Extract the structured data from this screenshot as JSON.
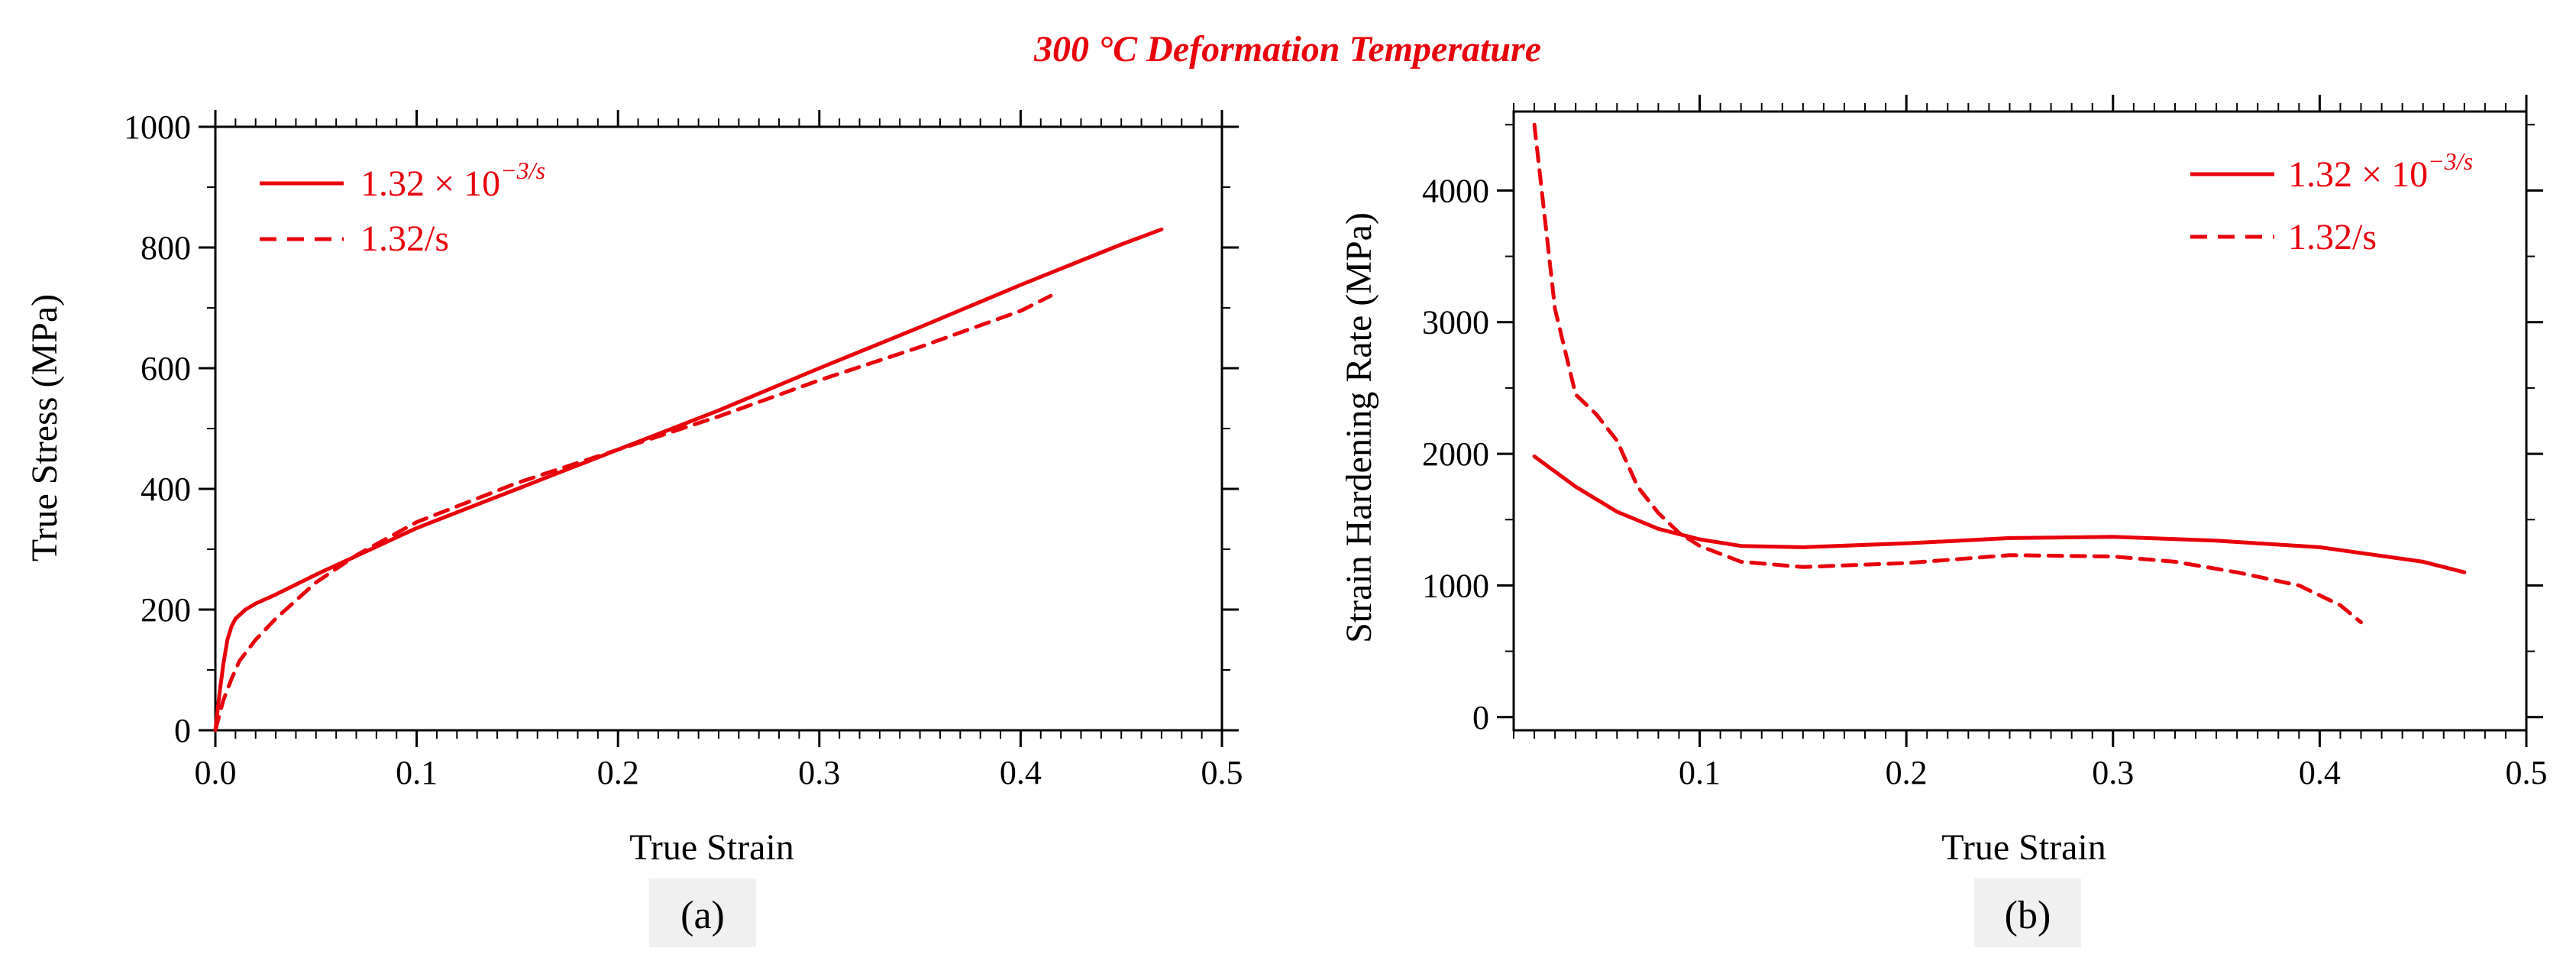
{
  "figure_title": "300 °C Deformation Temperature",
  "chart_data": [
    {
      "type": "line",
      "panel_label": "(a)",
      "xlabel": "True Strain",
      "ylabel": "True Stress (MPa)",
      "xlim": [
        0,
        0.5
      ],
      "ylim": [
        0,
        1000
      ],
      "xticks": [
        "0.0",
        "0.1",
        "0.2",
        "0.3",
        "0.4",
        "0.5"
      ],
      "yticks": [
        "0",
        "200",
        "400",
        "600",
        "800",
        "1000"
      ],
      "legend_position": "top-left",
      "series": [
        {
          "name": "1.32 × 10",
          "name_exp": "−3/s",
          "style": "solid",
          "color": "#e8000b",
          "x": [
            0,
            0.002,
            0.004,
            0.006,
            0.008,
            0.01,
            0.015,
            0.02,
            0.03,
            0.05,
            0.1,
            0.15,
            0.2,
            0.25,
            0.3,
            0.35,
            0.4,
            0.45,
            0.47
          ],
          "y": [
            0,
            60,
            110,
            150,
            172,
            185,
            200,
            210,
            225,
            258,
            335,
            400,
            465,
            530,
            600,
            668,
            738,
            805,
            830
          ]
        },
        {
          "name": "1.32/s",
          "style": "dashed",
          "color": "#e8000b",
          "x": [
            0,
            0.004,
            0.008,
            0.012,
            0.02,
            0.03,
            0.04,
            0.05,
            0.07,
            0.1,
            0.15,
            0.2,
            0.25,
            0.3,
            0.35,
            0.4,
            0.415
          ],
          "y": [
            0,
            50,
            85,
            115,
            150,
            185,
            215,
            245,
            290,
            345,
            410,
            465,
            520,
            580,
            635,
            695,
            720
          ]
        }
      ]
    },
    {
      "type": "line",
      "panel_label": "(b)",
      "xlabel": "True Strain",
      "ylabel": "Strain Hardening Rate (MPa)",
      "xlim": [
        0.01,
        0.5
      ],
      "ylim": [
        -100,
        4600
      ],
      "xticks": [
        "0.1",
        "0.2",
        "0.3",
        "0.4",
        "0.5"
      ],
      "yticks": [
        "0",
        "1000",
        "2000",
        "3000",
        "4000"
      ],
      "legend_position": "top-right",
      "series": [
        {
          "name": "1.32 × 10",
          "name_exp": "−3/s",
          "style": "solid",
          "color": "#e8000b",
          "x": [
            0.02,
            0.04,
            0.06,
            0.08,
            0.1,
            0.12,
            0.15,
            0.2,
            0.25,
            0.3,
            0.35,
            0.4,
            0.45,
            0.47
          ],
          "y": [
            1980,
            1750,
            1560,
            1430,
            1350,
            1300,
            1290,
            1320,
            1360,
            1370,
            1340,
            1290,
            1180,
            1100
          ]
        },
        {
          "name": "1.32/s",
          "style": "dashed",
          "color": "#e8000b",
          "x": [
            0.02,
            0.025,
            0.03,
            0.04,
            0.05,
            0.06,
            0.07,
            0.08,
            0.09,
            0.1,
            0.12,
            0.15,
            0.2,
            0.25,
            0.3,
            0.33,
            0.36,
            0.39,
            0.41,
            0.42
          ],
          "y": [
            4500,
            3800,
            3100,
            2450,
            2300,
            2100,
            1750,
            1550,
            1400,
            1300,
            1180,
            1140,
            1170,
            1230,
            1220,
            1180,
            1100,
            1000,
            850,
            720
          ]
        }
      ]
    }
  ]
}
